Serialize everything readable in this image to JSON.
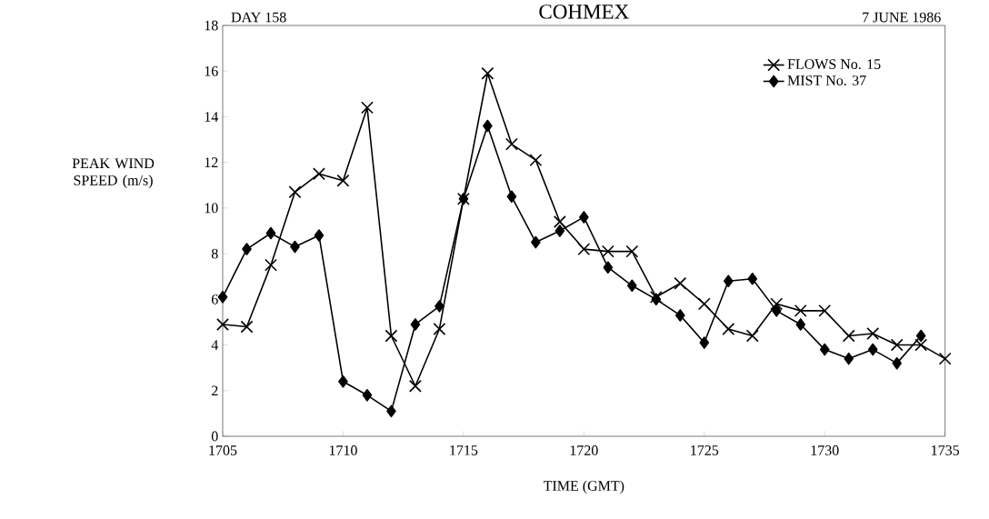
{
  "chart_data": {
    "type": "line",
    "title": "COHMEX",
    "xlabel": "TIME (GMT)",
    "ylabel": "PEAK WIND SPEED  (m/s)",
    "annotations": [
      "DAY 158",
      "7 JUNE 1986"
    ],
    "xlim": [
      1705,
      1735
    ],
    "xticks": [
      1705,
      1710,
      1715,
      1720,
      1725,
      1730,
      1735
    ],
    "ylim": [
      0,
      18
    ],
    "yticks": [
      0,
      2,
      4,
      6,
      8,
      10,
      12,
      14,
      16,
      18
    ],
    "legend": "top right",
    "grid": false,
    "line_style": "solid",
    "series": [
      {
        "name": "FLOWS No. 15",
        "color": "#000000",
        "marker": "cross",
        "x": [
          1705,
          1706,
          1707,
          1708,
          1709,
          1710,
          1711,
          1712,
          1713,
          1714,
          1715,
          1716,
          1717,
          1718,
          1719,
          1720,
          1721,
          1722,
          1723,
          1724,
          1725,
          1726,
          1727,
          1728,
          1729,
          1730,
          1731,
          1732,
          1733,
          1734,
          1735
        ],
        "values": [
          4.9,
          4.8,
          7.5,
          10.7,
          11.5,
          11.2,
          14.4,
          4.4,
          2.2,
          4.7,
          10.4,
          15.9,
          12.8,
          12.1,
          9.4,
          8.2,
          8.1,
          8.1,
          6.1,
          6.7,
          5.8,
          4.7,
          4.4,
          5.8,
          5.5,
          5.5,
          4.4,
          4.5,
          4.0,
          4.0,
          3.4
        ]
      },
      {
        "name": "MIST No. 37",
        "color": "#000000",
        "marker": "diamond",
        "x": [
          1705,
          1706,
          1707,
          1708,
          1709,
          1710,
          1711,
          1712,
          1713,
          1714,
          1715,
          1716,
          1717,
          1718,
          1719,
          1720,
          1721,
          1722,
          1723,
          1724,
          1725,
          1726,
          1727,
          1728,
          1729,
          1730,
          1731,
          1732,
          1733,
          1734
        ],
        "values": [
          6.1,
          8.2,
          8.9,
          8.3,
          8.8,
          2.4,
          1.8,
          1.1,
          4.9,
          5.7,
          10.4,
          13.6,
          10.5,
          8.5,
          9.0,
          9.6,
          7.4,
          6.6,
          6.0,
          5.3,
          4.1,
          6.8,
          6.9,
          5.5,
          4.9,
          3.8,
          3.4,
          3.8,
          3.2,
          4.4
        ]
      }
    ]
  }
}
